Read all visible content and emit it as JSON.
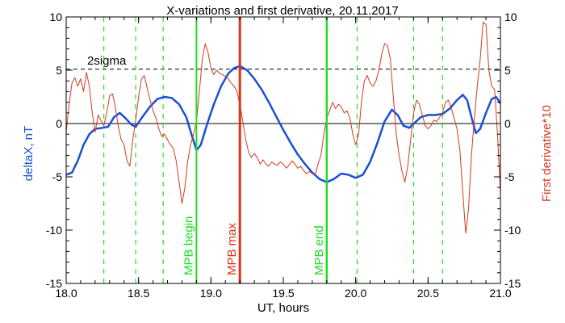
{
  "chart_data": {
    "type": "line",
    "title": "X-variations and first derivative, 20.11.2017",
    "xlabel": "UT, hours",
    "ylabel_left": "deltaX, nT",
    "ylabel_right": "First derivative*10",
    "xlim": [
      18.0,
      21.0
    ],
    "ylim": [
      -15,
      10
    ],
    "x_ticks": [
      18.0,
      18.5,
      19.0,
      19.5,
      20.0,
      20.5,
      21.0
    ],
    "x_tick_labels": [
      "18.0",
      "18.5",
      "19.0",
      "19.5",
      "20.0",
      "20.5",
      "21.0"
    ],
    "y_ticks": [
      -15,
      -10,
      -5,
      0,
      5,
      10
    ],
    "y_tick_labels": [
      "-15",
      "-10",
      "-5",
      "0",
      "5",
      "10"
    ],
    "sigma_level": 5.1,
    "sigma_label": "2sigma",
    "colors": {
      "deltaX": "#1a4fd6",
      "derivative": "#d23a1e",
      "mpb_begin": "#22dd22",
      "mpb_max": "#e03018",
      "mpb_end": "#22dd22",
      "green_dashed": "#22dd22",
      "axis": "#000000"
    },
    "green_dashed_x": [
      18.26,
      18.48,
      18.67,
      20.01,
      20.4,
      20.6
    ],
    "markers": [
      {
        "x": 18.9,
        "label": "MPB begin",
        "color": "#22dd22",
        "width": 2
      },
      {
        "x": 19.2,
        "label": "MPB max",
        "color": "#e03018",
        "width": 3
      },
      {
        "x": 19.8,
        "label": "MPB end",
        "color": "#22dd22",
        "width": 2.5
      }
    ],
    "series": [
      {
        "name": "deltaX",
        "axis": "left",
        "points": [
          [
            18.0,
            -4.8
          ],
          [
            18.04,
            -4.6
          ],
          [
            18.08,
            -3.5
          ],
          [
            18.12,
            -2.0
          ],
          [
            18.16,
            -1.0
          ],
          [
            18.2,
            -0.5
          ],
          [
            18.25,
            -0.4
          ],
          [
            18.29,
            -0.3
          ],
          [
            18.33,
            0.6
          ],
          [
            18.37,
            1.0
          ],
          [
            18.41,
            0.5
          ],
          [
            18.45,
            -0.1
          ],
          [
            18.48,
            -0.3
          ],
          [
            18.52,
            0.5
          ],
          [
            18.58,
            1.6
          ],
          [
            18.63,
            2.3
          ],
          [
            18.68,
            2.5
          ],
          [
            18.73,
            2.4
          ],
          [
            18.78,
            1.8
          ],
          [
            18.83,
            0.6
          ],
          [
            18.87,
            -1.2
          ],
          [
            18.9,
            -2.5
          ],
          [
            18.93,
            -2.0
          ],
          [
            18.97,
            -0.2
          ],
          [
            19.02,
            1.8
          ],
          [
            19.07,
            3.5
          ],
          [
            19.12,
            4.7
          ],
          [
            19.16,
            5.2
          ],
          [
            19.2,
            5.4
          ],
          [
            19.25,
            5.0
          ],
          [
            19.3,
            4.2
          ],
          [
            19.35,
            3.2
          ],
          [
            19.4,
            2.0
          ],
          [
            19.45,
            0.7
          ],
          [
            19.5,
            -0.6
          ],
          [
            19.55,
            -1.8
          ],
          [
            19.6,
            -2.9
          ],
          [
            19.65,
            -3.8
          ],
          [
            19.7,
            -4.6
          ],
          [
            19.75,
            -5.2
          ],
          [
            19.8,
            -5.5
          ],
          [
            19.85,
            -5.2
          ],
          [
            19.9,
            -4.7
          ],
          [
            19.95,
            -4.8
          ],
          [
            20.0,
            -5.1
          ],
          [
            20.05,
            -4.8
          ],
          [
            20.1,
            -3.6
          ],
          [
            20.15,
            -1.8
          ],
          [
            20.2,
            0.2
          ],
          [
            20.25,
            1.3
          ],
          [
            20.29,
            0.8
          ],
          [
            20.33,
            -0.2
          ],
          [
            20.37,
            -0.4
          ],
          [
            20.41,
            0.1
          ],
          [
            20.45,
            0.6
          ],
          [
            20.5,
            0.8
          ],
          [
            20.55,
            0.8
          ],
          [
            20.6,
            0.9
          ],
          [
            20.65,
            1.4
          ],
          [
            20.7,
            2.2
          ],
          [
            20.74,
            2.7
          ],
          [
            20.77,
            2.2
          ],
          [
            20.8,
            0.6
          ],
          [
            20.83,
            -0.9
          ],
          [
            20.86,
            -0.5
          ],
          [
            20.9,
            1.0
          ],
          [
            20.94,
            2.3
          ],
          [
            20.97,
            2.5
          ],
          [
            21.0,
            1.9
          ]
        ]
      },
      {
        "name": "derivative",
        "axis": "right",
        "points": [
          [
            18.0,
            -0.8
          ],
          [
            18.02,
            1.8
          ],
          [
            18.04,
            3.8
          ],
          [
            18.06,
            4.3
          ],
          [
            18.08,
            3.5
          ],
          [
            18.1,
            4.2
          ],
          [
            18.12,
            3.0
          ],
          [
            18.14,
            4.8
          ],
          [
            18.16,
            3.5
          ],
          [
            18.18,
            1.0
          ],
          [
            18.2,
            -0.8
          ],
          [
            18.22,
            0.8
          ],
          [
            18.24,
            0.3
          ],
          [
            18.26,
            -0.2
          ],
          [
            18.28,
            1.0
          ],
          [
            18.3,
            2.6
          ],
          [
            18.32,
            2.8
          ],
          [
            18.34,
            1.5
          ],
          [
            18.36,
            -0.3
          ],
          [
            18.38,
            -1.5
          ],
          [
            18.4,
            -2.0
          ],
          [
            18.42,
            -3.5
          ],
          [
            18.44,
            -4.0
          ],
          [
            18.46,
            -1.5
          ],
          [
            18.48,
            0.3
          ],
          [
            18.5,
            2.5
          ],
          [
            18.52,
            4.2
          ],
          [
            18.54,
            4.5
          ],
          [
            18.56,
            3.3
          ],
          [
            18.58,
            2.2
          ],
          [
            18.6,
            1.2
          ],
          [
            18.62,
            0.5
          ],
          [
            18.64,
            -0.5
          ],
          [
            18.66,
            -1.2
          ],
          [
            18.68,
            -1.0
          ],
          [
            18.7,
            -1.5
          ],
          [
            18.72,
            -2.0
          ],
          [
            18.74,
            -2.3
          ],
          [
            18.76,
            -3.5
          ],
          [
            18.78,
            -5.5
          ],
          [
            18.8,
            -7.5
          ],
          [
            18.82,
            -6.0
          ],
          [
            18.84,
            -3.5
          ],
          [
            18.86,
            -2.0
          ],
          [
            18.88,
            -1.0
          ],
          [
            18.9,
            0.2
          ],
          [
            18.92,
            3.0
          ],
          [
            18.94,
            6.0
          ],
          [
            18.96,
            7.5
          ],
          [
            18.98,
            6.7
          ],
          [
            19.0,
            5.2
          ],
          [
            19.02,
            4.6
          ],
          [
            19.04,
            5.0
          ],
          [
            19.06,
            4.7
          ],
          [
            19.08,
            4.6
          ],
          [
            19.1,
            4.4
          ],
          [
            19.12,
            4.2
          ],
          [
            19.14,
            3.8
          ],
          [
            19.16,
            3.5
          ],
          [
            19.18,
            3.0
          ],
          [
            19.2,
            1.8
          ],
          [
            19.22,
            0.2
          ],
          [
            19.24,
            -1.5
          ],
          [
            19.26,
            -2.7
          ],
          [
            19.28,
            -3.2
          ],
          [
            19.3,
            -2.8
          ],
          [
            19.32,
            -3.2
          ],
          [
            19.34,
            -3.8
          ],
          [
            19.36,
            -3.4
          ],
          [
            19.38,
            -3.8
          ],
          [
            19.4,
            -4.0
          ],
          [
            19.42,
            -3.6
          ],
          [
            19.44,
            -3.8
          ],
          [
            19.46,
            -3.9
          ],
          [
            19.48,
            -3.6
          ],
          [
            19.5,
            -3.8
          ],
          [
            19.52,
            -4.2
          ],
          [
            19.54,
            -3.9
          ],
          [
            19.56,
            -3.5
          ],
          [
            19.58,
            -3.8
          ],
          [
            19.6,
            -4.2
          ],
          [
            19.62,
            -4.0
          ],
          [
            19.64,
            -4.4
          ],
          [
            19.66,
            -4.7
          ],
          [
            19.68,
            -4.5
          ],
          [
            19.7,
            -4.7
          ],
          [
            19.72,
            -4.8
          ],
          [
            19.74,
            -3.8
          ],
          [
            19.76,
            -3.0
          ],
          [
            19.78,
            -1.0
          ],
          [
            19.8,
            0.5
          ],
          [
            19.82,
            1.2
          ],
          [
            19.84,
            2.0
          ],
          [
            19.86,
            1.4
          ],
          [
            19.88,
            1.8
          ],
          [
            19.9,
            1.6
          ],
          [
            19.92,
            1.0
          ],
          [
            19.94,
            1.2
          ],
          [
            19.96,
            0.5
          ],
          [
            19.98,
            -1.0
          ],
          [
            20.0,
            -2.0
          ],
          [
            20.02,
            -1.0
          ],
          [
            20.04,
            2.0
          ],
          [
            20.06,
            4.0
          ],
          [
            20.08,
            4.5
          ],
          [
            20.1,
            3.8
          ],
          [
            20.12,
            3.5
          ],
          [
            20.14,
            4.0
          ],
          [
            20.16,
            5.0
          ],
          [
            20.18,
            6.5
          ],
          [
            20.2,
            7.5
          ],
          [
            20.22,
            7.3
          ],
          [
            20.24,
            6.0
          ],
          [
            20.26,
            2.5
          ],
          [
            20.28,
            -1.0
          ],
          [
            20.3,
            -3.0
          ],
          [
            20.32,
            -4.5
          ],
          [
            20.34,
            -5.5
          ],
          [
            20.36,
            -4.0
          ],
          [
            20.38,
            -1.5
          ],
          [
            20.4,
            1.0
          ],
          [
            20.42,
            2.2
          ],
          [
            20.44,
            1.8
          ],
          [
            20.46,
            0.8
          ],
          [
            20.48,
            -0.2
          ],
          [
            20.5,
            -0.5
          ],
          [
            20.52,
            -0.2
          ],
          [
            20.54,
            0.3
          ],
          [
            20.56,
            0.2
          ],
          [
            20.58,
            0.6
          ],
          [
            20.6,
            1.0
          ],
          [
            20.62,
            2.0
          ],
          [
            20.64,
            2.2
          ],
          [
            20.66,
            1.5
          ],
          [
            20.68,
            0.5
          ],
          [
            20.7,
            -0.5
          ],
          [
            20.72,
            -2.5
          ],
          [
            20.74,
            -6.5
          ],
          [
            20.76,
            -10.3
          ],
          [
            20.78,
            -8.0
          ],
          [
            20.8,
            -3.0
          ],
          [
            20.82,
            0.5
          ],
          [
            20.84,
            3.5
          ],
          [
            20.86,
            6.0
          ],
          [
            20.88,
            9.5
          ],
          [
            20.9,
            9.3
          ],
          [
            20.92,
            5.0
          ],
          [
            20.94,
            3.5
          ],
          [
            20.96,
            3.2
          ],
          [
            20.98,
            -1.0
          ],
          [
            21.0,
            -6.5
          ]
        ]
      }
    ]
  }
}
